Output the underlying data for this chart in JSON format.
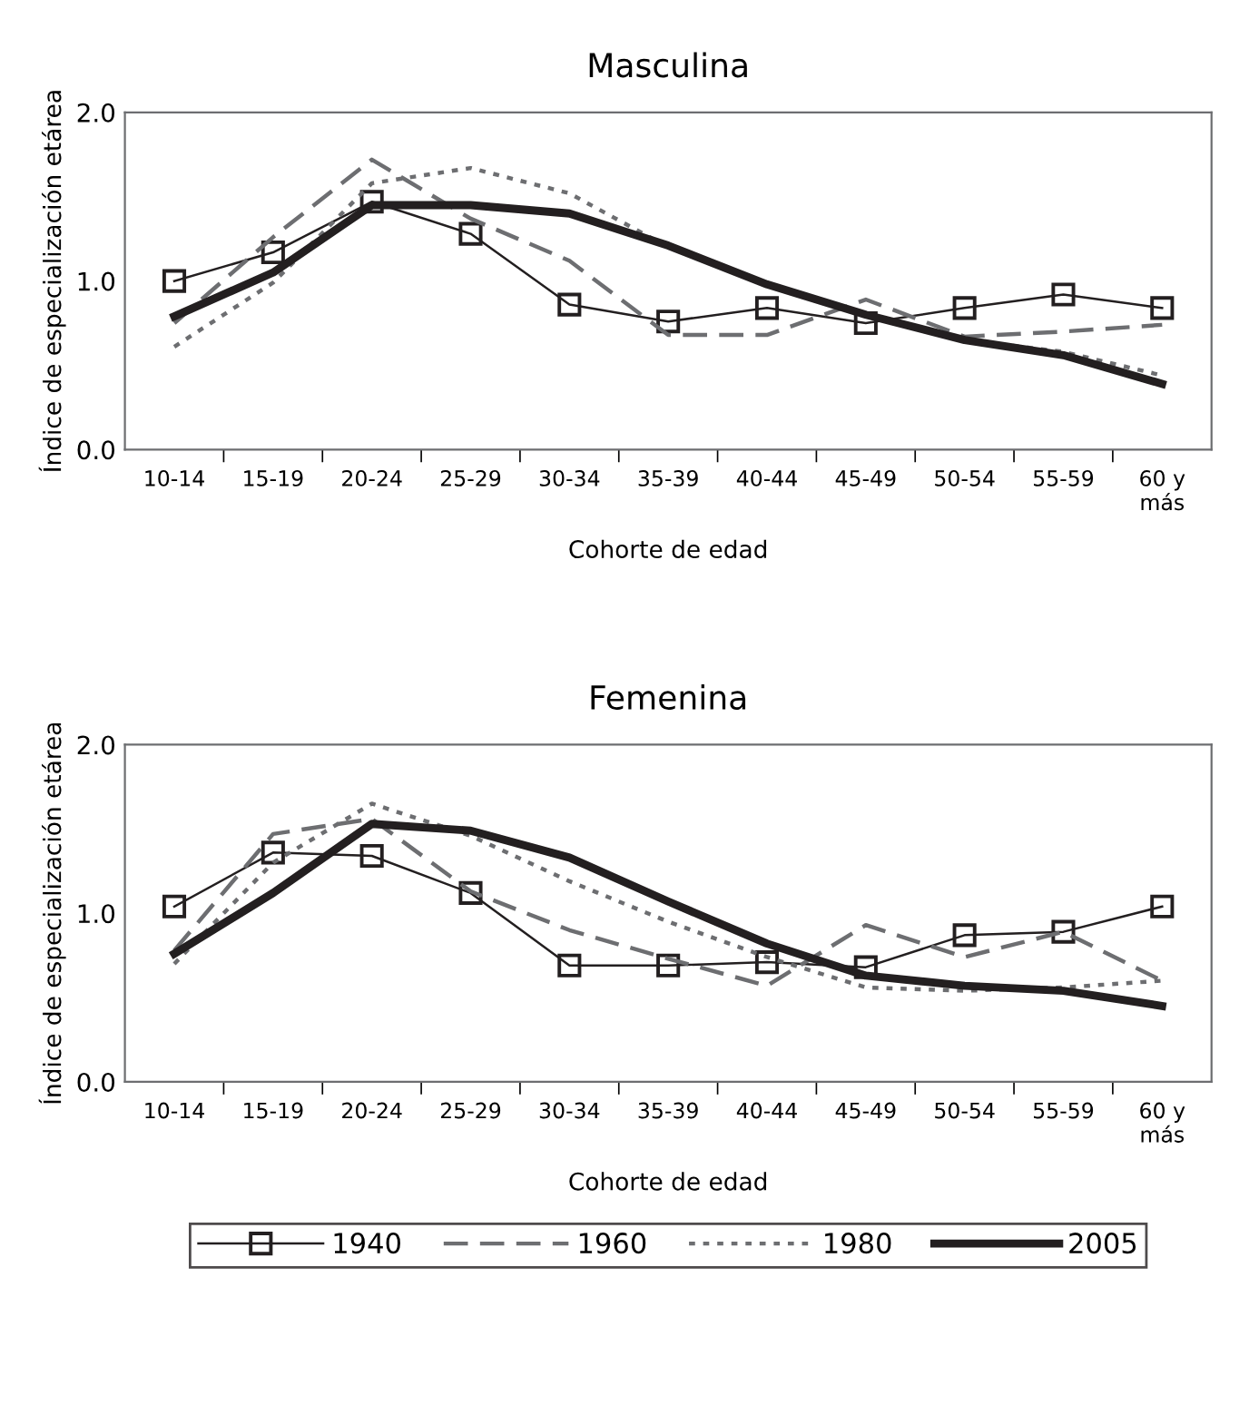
{
  "chart_data": [
    {
      "type": "line",
      "title": "Masculina",
      "xlabel": "Cohorte de edad",
      "ylabel": "Índice de especialización etárea",
      "categories": [
        "10-14",
        "15-19",
        "20-24",
        "25-29",
        "30-34",
        "35-39",
        "40-44",
        "45-49",
        "50-54",
        "55-59",
        "60 y\nmás"
      ],
      "ylim": [
        0,
        2
      ],
      "yticks": [
        {
          "value": 0,
          "label": "0.0"
        },
        {
          "value": 1,
          "label": "1.0"
        },
        {
          "value": 2,
          "label": "2.0"
        }
      ],
      "series": [
        {
          "color": "#231f20",
          "marker": "square",
          "line_style": "solid",
          "values": [
            1.0,
            1.17,
            1.47,
            1.28,
            0.86,
            0.76,
            0.84,
            0.75,
            0.84,
            0.92,
            0.84
          ]
        },
        {
          "color": "#6d6e71",
          "marker": "none",
          "line_style": "dashed",
          "values": [
            0.75,
            1.26,
            1.72,
            1.37,
            1.12,
            0.68,
            0.68,
            0.89,
            0.67,
            0.7,
            0.74
          ]
        },
        {
          "color": "#6d6e71",
          "marker": "none",
          "line_style": "dotted",
          "values": [
            0.61,
            0.99,
            1.58,
            1.67,
            1.52,
            1.2,
            0.98,
            0.8,
            0.65,
            0.58,
            0.44
          ]
        },
        {
          "color": "#231f20",
          "marker": "none",
          "line_style": "solid",
          "values": [
            0.79,
            1.05,
            1.45,
            1.45,
            1.4,
            1.21,
            0.98,
            0.8,
            0.65,
            0.56,
            0.39
          ]
        }
      ]
    },
    {
      "type": "line",
      "title": "Femenina",
      "xlabel": "Cohorte de edad",
      "ylabel": "Índice de especialización etárea",
      "categories": [
        "10-14",
        "15-19",
        "20-24",
        "25-29",
        "30-34",
        "35-39",
        "40-44",
        "45-49",
        "50-54",
        "55-59",
        "60 y\nmás"
      ],
      "ylim": [
        0,
        2
      ],
      "yticks": [
        {
          "value": 0,
          "label": "0.0"
        },
        {
          "value": 1,
          "label": "1.0"
        },
        {
          "value": 2,
          "label": "2.0"
        }
      ],
      "legend": "bottom",
      "series": [
        {
          "name": "1940",
          "color": "#231f20",
          "marker": "square",
          "line_style": "solid",
          "values": [
            1.04,
            1.36,
            1.34,
            1.12,
            0.69,
            0.69,
            0.71,
            0.68,
            0.87,
            0.89,
            1.04
          ]
        },
        {
          "name": "1960",
          "color": "#6d6e71",
          "marker": "none",
          "line_style": "dashed",
          "values": [
            0.78,
            1.47,
            1.56,
            1.13,
            0.9,
            0.73,
            0.57,
            0.93,
            0.74,
            0.89,
            0.6
          ]
        },
        {
          "name": "1980",
          "color": "#6d6e71",
          "marker": "none",
          "line_style": "dotted",
          "values": [
            0.7,
            1.3,
            1.65,
            1.46,
            1.19,
            0.95,
            0.74,
            0.56,
            0.54,
            0.56,
            0.6
          ]
        },
        {
          "name": "2005",
          "color": "#231f20",
          "marker": "none",
          "line_style": "solid",
          "values": [
            0.76,
            1.12,
            1.53,
            1.49,
            1.33,
            1.07,
            0.82,
            0.63,
            0.57,
            0.54,
            0.45
          ]
        }
      ]
    }
  ]
}
